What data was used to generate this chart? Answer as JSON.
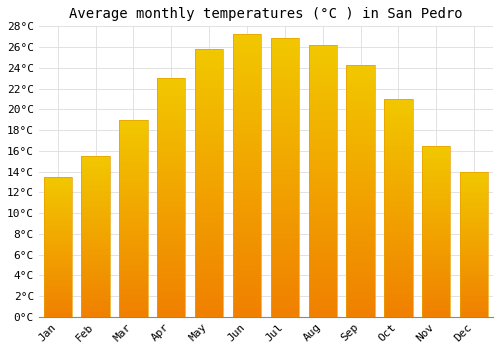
{
  "title": "Average monthly temperatures (°C ) in San Pedro",
  "months": [
    "Jan",
    "Feb",
    "Mar",
    "Apr",
    "May",
    "Jun",
    "Jul",
    "Aug",
    "Sep",
    "Oct",
    "Nov",
    "Dec"
  ],
  "values": [
    13.5,
    15.5,
    19.0,
    23.0,
    25.8,
    27.3,
    26.9,
    26.2,
    24.3,
    21.0,
    16.5,
    14.0
  ],
  "bar_color_top": "#FFC84A",
  "bar_color_bottom": "#F08000",
  "bar_edge_color": "#E8A000",
  "background_color": "#FFFFFF",
  "grid_color": "#DDDDDD",
  "ylim": [
    0,
    28
  ],
  "ytick_step": 2,
  "title_fontsize": 10,
  "tick_fontsize": 8,
  "font_family": "monospace",
  "bar_width": 0.75
}
